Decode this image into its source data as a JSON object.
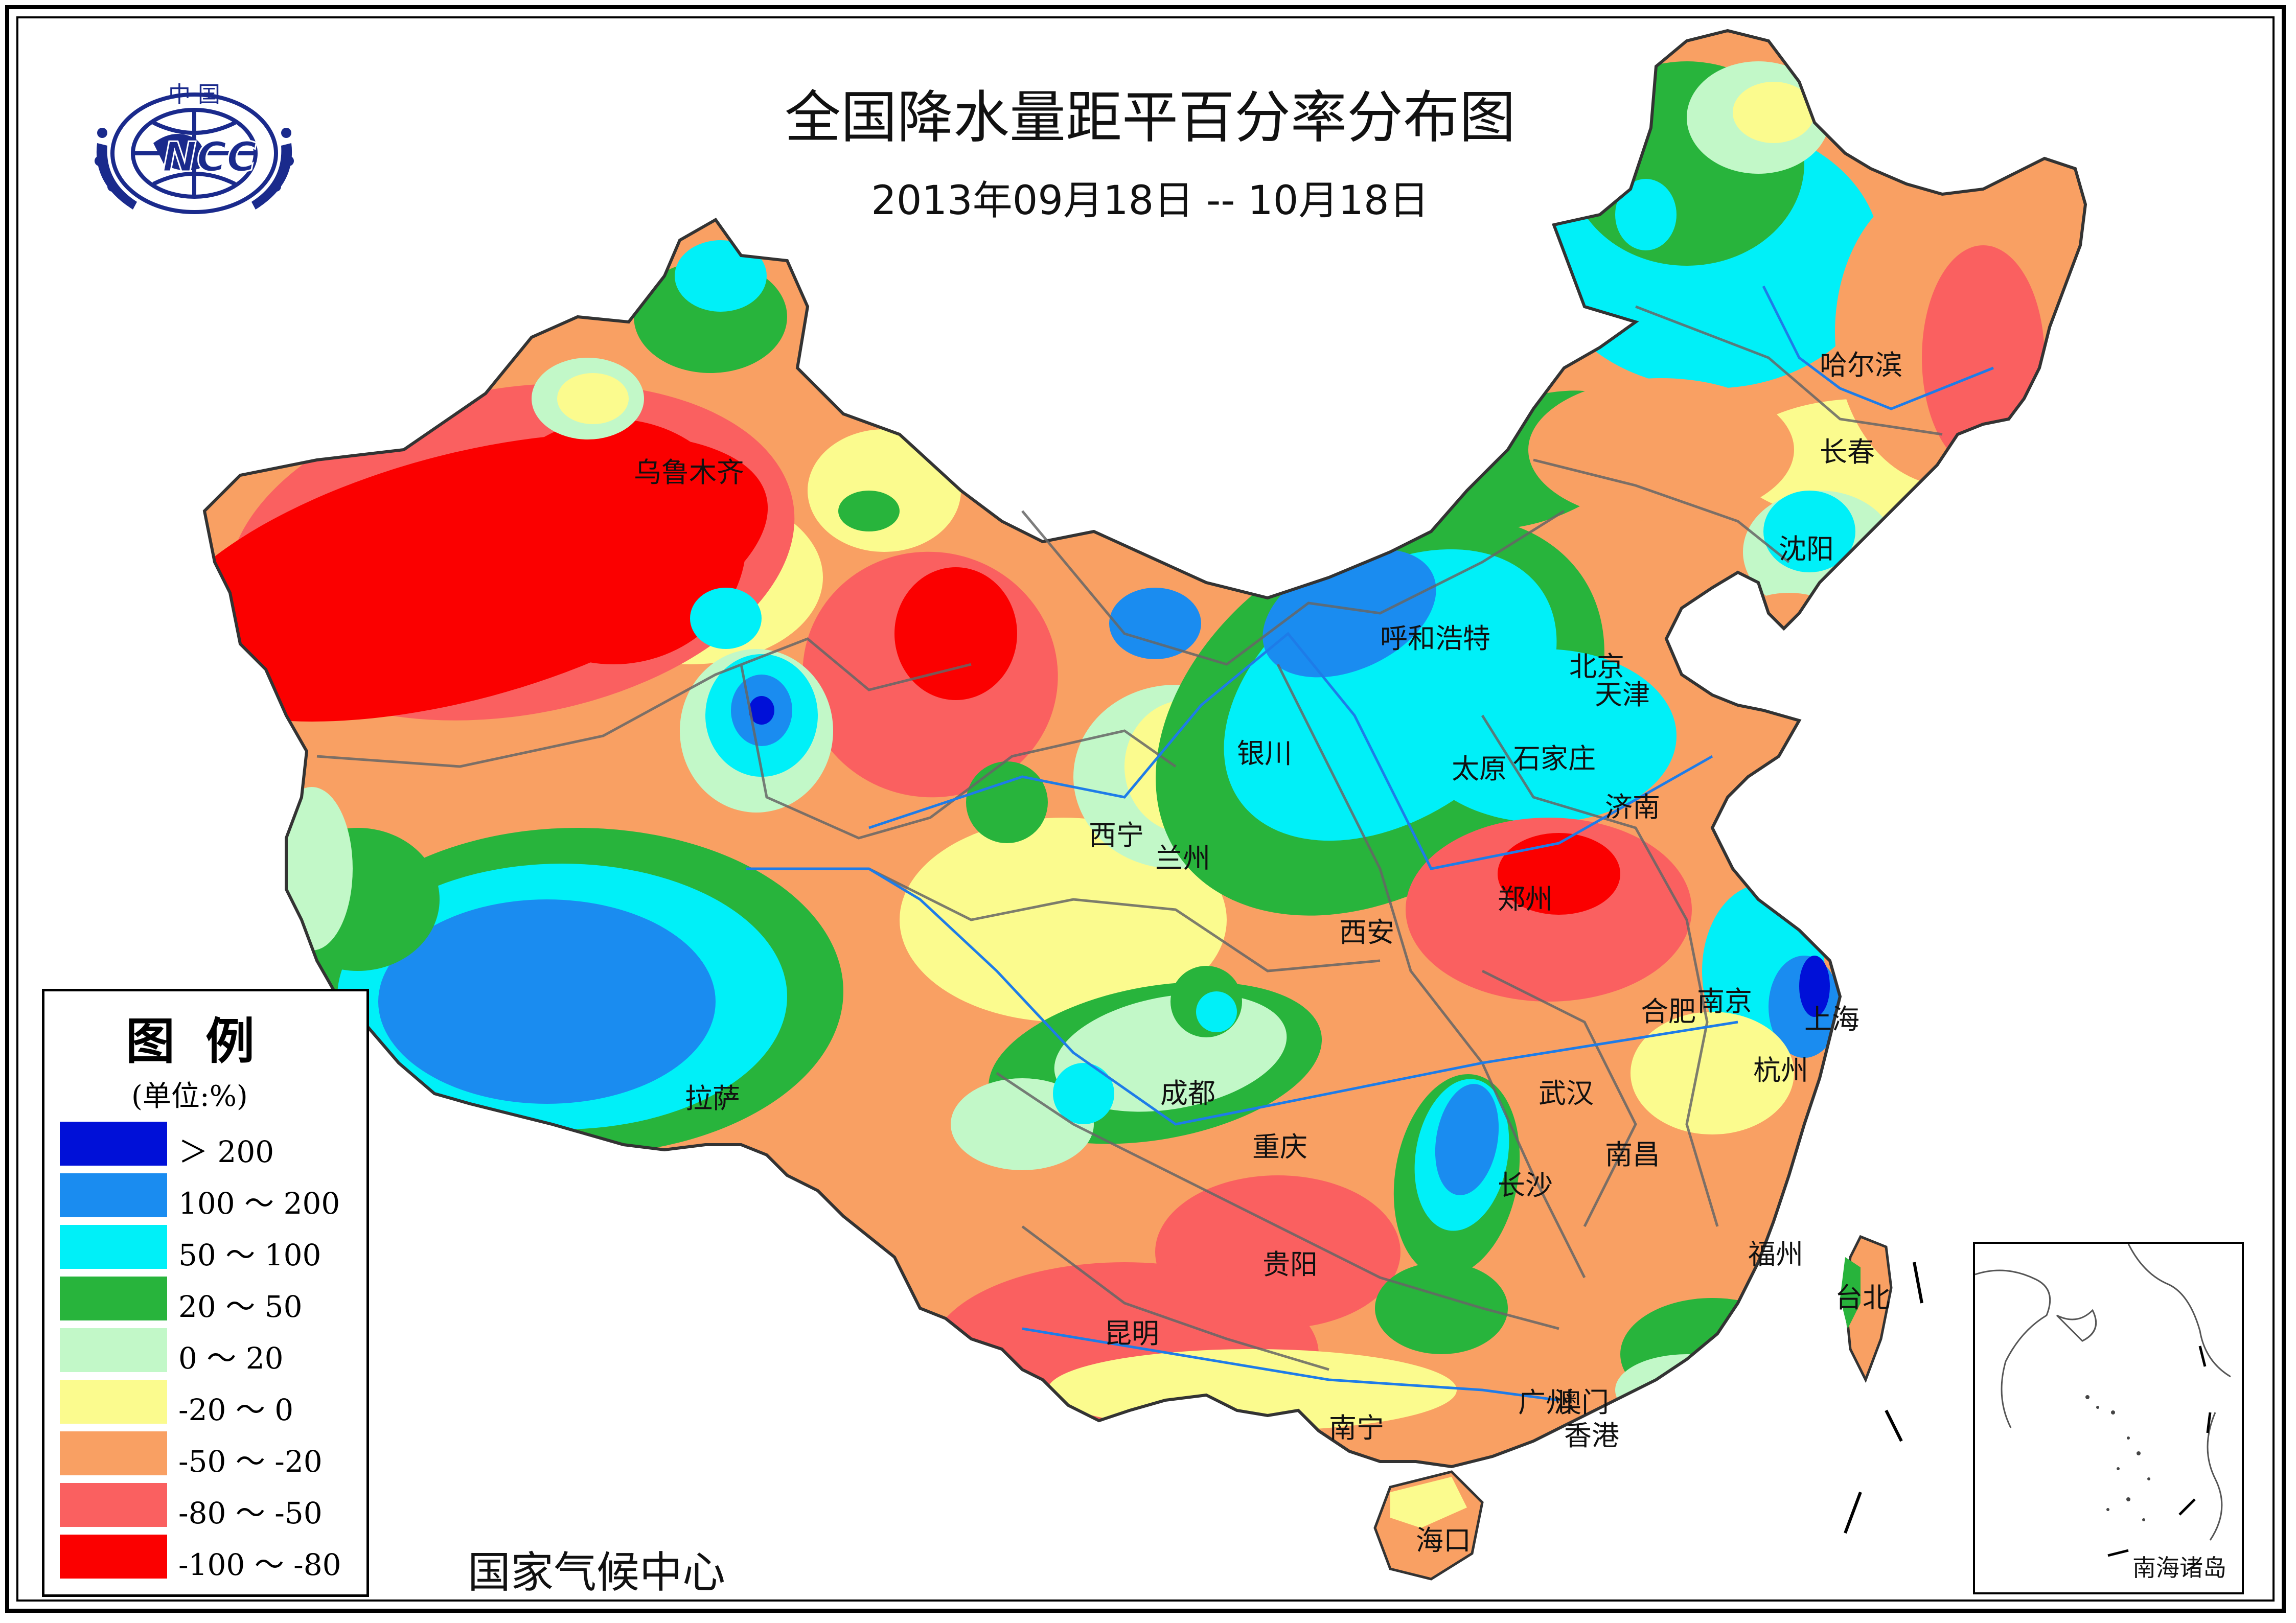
{
  "title": "全国降水量距平百分率分布图",
  "subtitle": "2013年09月18日 -- 10月18日",
  "organization": "国家气候中心",
  "logo": {
    "top_text": "中 国",
    "center_text": "NCC",
    "icon": "ncc-globe-wreath-logo"
  },
  "legend": {
    "title": "图例",
    "unit": "(单位:%)",
    "items": [
      {
        "label": "＞ 200",
        "color": "#0010d8"
      },
      {
        "label": "100 ～ 200",
        "color": "#1a8cf0"
      },
      {
        "label": "50 ～ 100",
        "color": "#00f0f8"
      },
      {
        "label": "20 ～ 50",
        "color": "#28b43c"
      },
      {
        "label": "0 ～ 20",
        "color": "#c2f8c8"
      },
      {
        "label": "-20 ～ 0",
        "color": "#fbfb8e"
      },
      {
        "label": "-50 ～ -20",
        "color": "#f9a063"
      },
      {
        "label": "-80 ～ -50",
        "color": "#fa6060"
      },
      {
        "label": "-100 ～ -80",
        "color": "#fb0000"
      }
    ]
  },
  "cities": [
    {
      "name": "乌鲁木齐"
    },
    {
      "name": "呼和浩特"
    },
    {
      "name": "北京"
    },
    {
      "name": "天津"
    },
    {
      "name": "哈尔滨"
    },
    {
      "name": "长春"
    },
    {
      "name": "沈阳"
    },
    {
      "name": "银川"
    },
    {
      "name": "太原"
    },
    {
      "name": "石家庄"
    },
    {
      "name": "济南"
    },
    {
      "name": "西宁"
    },
    {
      "name": "兰州"
    },
    {
      "name": "郑州"
    },
    {
      "name": "西安"
    },
    {
      "name": "南京"
    },
    {
      "name": "合肥"
    },
    {
      "name": "上海"
    },
    {
      "name": "杭州"
    },
    {
      "name": "拉萨"
    },
    {
      "name": "成都"
    },
    {
      "name": "武汉"
    },
    {
      "name": "重庆"
    },
    {
      "name": "南昌"
    },
    {
      "name": "长沙"
    },
    {
      "name": "福州"
    },
    {
      "name": "台北"
    },
    {
      "name": "贵阳"
    },
    {
      "name": "昆明"
    },
    {
      "name": "广州"
    },
    {
      "name": "澳门"
    },
    {
      "name": "香港"
    },
    {
      "name": "南宁"
    },
    {
      "name": "海口"
    }
  ],
  "inset": {
    "label": "南海诸岛"
  }
}
